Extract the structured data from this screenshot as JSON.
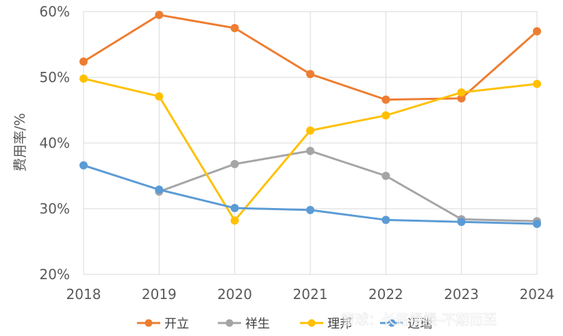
{
  "chart_data": {
    "type": "line",
    "ylabel": "费用率/%",
    "x": [
      "2018",
      "2019",
      "2020",
      "2021",
      "2022",
      "2023",
      "2024"
    ],
    "yticks": [
      "20%",
      "30%",
      "40%",
      "50%",
      "60%"
    ],
    "ylim": [
      20,
      60
    ],
    "grid": true,
    "legend_position": "bottom",
    "series": [
      {
        "name": "开立",
        "color": "#ED7D31",
        "values": [
          52.4,
          59.5,
          57.5,
          50.5,
          46.6,
          46.8,
          57.0
        ]
      },
      {
        "name": "祥生",
        "color": "#A5A5A5",
        "values": [
          null,
          32.6,
          36.8,
          38.8,
          35.0,
          28.4,
          28.1
        ]
      },
      {
        "name": "理邦",
        "color": "#FFC000",
        "values": [
          49.8,
          47.1,
          28.2,
          41.9,
          44.2,
          47.7,
          49.0
        ]
      },
      {
        "name": "迈瑞",
        "color": "#5B9BD5",
        "values": [
          36.6,
          32.9,
          30.1,
          29.8,
          28.3,
          28.0,
          27.7
        ]
      }
    ]
  },
  "watermark": "雪球：长路慢慢-不期而至"
}
